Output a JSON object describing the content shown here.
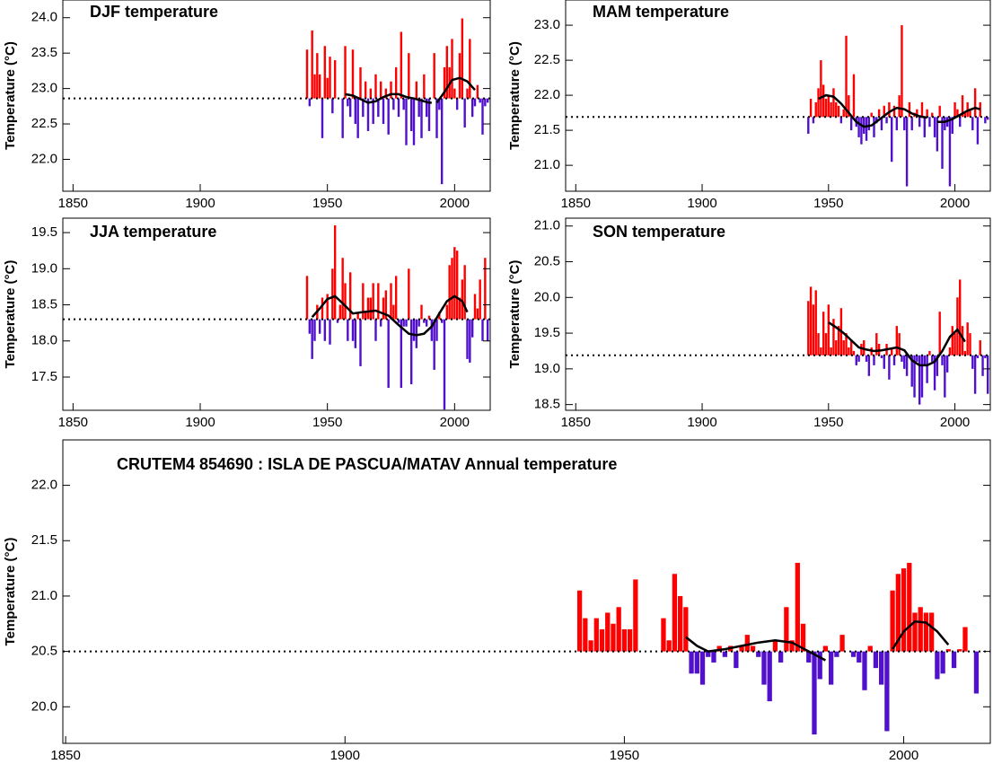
{
  "chart_data": [
    {
      "type": "bar",
      "title": "DJF temperature",
      "y_label": "Temperature (°C)",
      "xlim": [
        1846,
        2014
      ],
      "xticks": [
        1850,
        1900,
        1950,
        2000
      ],
      "ylim": [
        21.55,
        24.25
      ],
      "yticks": [
        {
          "value": 22.0,
          "label": "22.0"
        },
        {
          "value": 22.5,
          "label": "22.5"
        },
        {
          "value": 23.0,
          "label": "23.0"
        },
        {
          "value": 23.5,
          "label": "23.5"
        },
        {
          "value": 24.0,
          "label": "24.0"
        }
      ],
      "baseline": 22.86,
      "color_above": "#ff0000",
      "color_below": "#5010cc",
      "x": [
        1942,
        1943,
        1944,
        1945,
        1946,
        1947,
        1948,
        1949,
        1950,
        1951,
        1952,
        1953,
        1954,
        1955,
        1956,
        1957,
        1958,
        1959,
        1960,
        1961,
        1962,
        1963,
        1964,
        1965,
        1966,
        1967,
        1968,
        1969,
        1970,
        1971,
        1972,
        1973,
        1974,
        1975,
        1976,
        1977,
        1978,
        1979,
        1980,
        1981,
        1982,
        1983,
        1984,
        1985,
        1986,
        1987,
        1988,
        1989,
        1990,
        1991,
        1992,
        1993,
        1994,
        1995,
        1996,
        1997,
        1998,
        1999,
        2000,
        2001,
        2002,
        2003,
        2004,
        2005,
        2006,
        2007,
        2008,
        2009,
        2010,
        2011,
        2012,
        2013
      ],
      "values": [
        23.55,
        22.75,
        23.82,
        23.2,
        23.5,
        23.2,
        22.3,
        23.6,
        23.15,
        23.45,
        22.65,
        23.4,
        null,
        null,
        22.3,
        23.6,
        22.75,
        22.6,
        23.55,
        22.5,
        22.3,
        23.3,
        22.6,
        23.1,
        22.4,
        23.0,
        22.5,
        23.2,
        22.6,
        23.1,
        22.5,
        23.0,
        22.35,
        23.1,
        22.7,
        23.3,
        22.6,
        23.8,
        22.7,
        22.2,
        23.5,
        22.4,
        22.2,
        23.1,
        22.6,
        22.3,
        23.2,
        22.6,
        22.4,
        null,
        23.5,
        22.3,
        22.7,
        21.65,
        23.3,
        23.6,
        23.3,
        23.7,
        23.0,
        22.7,
        23.5,
        23.99,
        22.45,
        23.0,
        23.7,
        22.6,
        22.75,
        23.05,
        22.8,
        22.35,
        22.75,
        22.8
      ],
      "smooth": {
        "color": "#000000",
        "x": [
          1957,
          1960,
          1963,
          1966,
          1969,
          1972,
          1975,
          1978,
          1981,
          1984,
          1987,
          1990,
          1991,
          1992,
          1993,
          1996,
          1999,
          2002,
          2005,
          2008
        ],
        "values": [
          22.92,
          22.9,
          22.85,
          22.8,
          22.82,
          22.88,
          22.92,
          22.92,
          22.88,
          22.86,
          22.83,
          22.8,
          22.8,
          null,
          22.8,
          22.95,
          23.12,
          23.15,
          23.1,
          22.98
        ]
      }
    },
    {
      "type": "bar",
      "title": "MAM temperature",
      "y_label": "Temperature (°C)",
      "xlim": [
        1846,
        2014
      ],
      "xticks": [
        1850,
        1900,
        1950,
        2000
      ],
      "ylim": [
        20.63,
        23.36
      ],
      "yticks": [
        {
          "value": 21.0,
          "label": "21.0"
        },
        {
          "value": 21.5,
          "label": "21.5"
        },
        {
          "value": 22.0,
          "label": "22.0"
        },
        {
          "value": 22.5,
          "label": "22.5"
        },
        {
          "value": 23.0,
          "label": "23.0"
        }
      ],
      "baseline": 21.69,
      "color_above": "#ff0000",
      "color_below": "#5010cc",
      "x": [
        1942,
        1943,
        1944,
        1945,
        1946,
        1947,
        1948,
        1949,
        1950,
        1951,
        1952,
        1953,
        1954,
        1955,
        1956,
        1957,
        1958,
        1959,
        1960,
        1961,
        1962,
        1963,
        1964,
        1965,
        1966,
        1967,
        1968,
        1969,
        1970,
        1971,
        1972,
        1973,
        1974,
        1975,
        1976,
        1977,
        1978,
        1979,
        1980,
        1981,
        1982,
        1983,
        1984,
        1985,
        1986,
        1987,
        1988,
        1989,
        1990,
        1991,
        1992,
        1993,
        1994,
        1995,
        1996,
        1997,
        1998,
        1999,
        2000,
        2001,
        2002,
        2003,
        2004,
        2005,
        2006,
        2007,
        2008,
        2009,
        2010,
        2011,
        2012,
        2013
      ],
      "values": [
        21.45,
        21.95,
        21.6,
        21.9,
        22.1,
        22.5,
        22.15,
        21.95,
        22.0,
        21.9,
        22.1,
        21.9,
        21.85,
        21.6,
        21.8,
        22.85,
        22.0,
        21.5,
        22.3,
        21.55,
        21.4,
        21.3,
        21.45,
        21.35,
        21.5,
        21.75,
        21.4,
        21.6,
        21.8,
        21.5,
        21.85,
        21.6,
        21.9,
        21.05,
        21.85,
        21.5,
        22.0,
        23.0,
        21.5,
        20.7,
        21.9,
        21.5,
        21.75,
        21.8,
        21.55,
        21.9,
        21.4,
        21.8,
        21.55,
        21.75,
        21.4,
        21.2,
        21.85,
        20.95,
        21.5,
        21.55,
        20.7,
        21.45,
        21.9,
        21.8,
        21.55,
        22.0,
        21.75,
        21.9,
        21.8,
        21.5,
        22.1,
        21.3,
        21.9,
        null,
        21.6,
        21.65
      ],
      "smooth": {
        "color": "#000000",
        "x": [
          1946,
          1949,
          1952,
          1955,
          1958,
          1961,
          1964,
          1967,
          1970,
          1974,
          1977,
          1980,
          1983,
          1986,
          1989,
          1991,
          1993,
          1996,
          1999,
          2002,
          2005,
          2008,
          2010
        ],
        "values": [
          21.95,
          22.0,
          21.98,
          21.88,
          21.75,
          21.62,
          21.55,
          21.57,
          21.65,
          21.76,
          21.82,
          21.8,
          21.74,
          21.7,
          21.68,
          null,
          21.62,
          21.62,
          21.66,
          21.72,
          21.78,
          21.82,
          21.8
        ]
      }
    },
    {
      "type": "bar",
      "title": "JJA temperature",
      "y_label": "Temperature (°C)",
      "xlim": [
        1846,
        2014
      ],
      "xticks": [
        1850,
        1900,
        1950,
        2000
      ],
      "ylim": [
        17.04,
        19.7
      ],
      "yticks": [
        {
          "value": 17.5,
          "label": "17.5"
        },
        {
          "value": 18.0,
          "label": "18.0"
        },
        {
          "value": 18.5,
          "label": "18.5"
        },
        {
          "value": 19.0,
          "label": "19.0"
        },
        {
          "value": 19.5,
          "label": "19.5"
        }
      ],
      "baseline": 18.3,
      "color_above": "#ff0000",
      "color_below": "#5010cc",
      "x": [
        1942,
        1943,
        1944,
        1945,
        1946,
        1947,
        1948,
        1949,
        1950,
        1951,
        1952,
        1953,
        1954,
        1955,
        1956,
        1957,
        1958,
        1959,
        1960,
        1961,
        1962,
        1963,
        1964,
        1965,
        1966,
        1967,
        1968,
        1969,
        1970,
        1971,
        1972,
        1973,
        1974,
        1975,
        1976,
        1977,
        1978,
        1979,
        1980,
        1981,
        1982,
        1983,
        1984,
        1985,
        1986,
        1987,
        1988,
        1989,
        1990,
        1991,
        1992,
        1993,
        1994,
        1995,
        1996,
        1997,
        1998,
        1999,
        2000,
        2001,
        2002,
        2003,
        2004,
        2005,
        2006,
        2007,
        2008,
        2009,
        2010,
        2011,
        2012,
        2013
      ],
      "values": [
        18.9,
        18.1,
        17.75,
        18.0,
        18.5,
        18.1,
        18.6,
        18.0,
        18.65,
        17.95,
        19.0,
        19.6,
        18.25,
        18.5,
        19.15,
        18.8,
        18.0,
        18.95,
        18.0,
        17.9,
        18.4,
        17.65,
        18.8,
        18.4,
        18.6,
        18.6,
        18.8,
        18.0,
        18.8,
        18.2,
        18.6,
        18.7,
        17.35,
        18.8,
        18.5,
        18.9,
        18.25,
        17.35,
        18.2,
        18.2,
        19.0,
        17.4,
        18.0,
        17.9,
        18.2,
        18.5,
        18.25,
        18.2,
        18.35,
        18.0,
        17.6,
        18.0,
        18.4,
        18.25,
        17.05,
        18.5,
        19.05,
        19.15,
        19.3,
        19.25,
        18.6,
        18.85,
        19.05,
        17.75,
        17.7,
        18.05,
        18.65,
        18.45,
        18.85,
        18.0,
        19.15,
        18.0
      ],
      "smooth": {
        "color": "#000000",
        "x": [
          1944,
          1947,
          1950,
          1953,
          1956,
          1960,
          1964,
          1969,
          1974,
          1978,
          1982,
          1985,
          1988,
          1991,
          1994,
          1997,
          2000,
          2003,
          2005
        ],
        "values": [
          18.33,
          18.45,
          18.58,
          18.62,
          18.52,
          18.38,
          18.4,
          18.42,
          18.35,
          18.22,
          18.1,
          18.08,
          18.1,
          18.2,
          18.38,
          18.55,
          18.62,
          18.55,
          18.4
        ]
      }
    },
    {
      "type": "bar",
      "title": "SON temperature",
      "y_label": "Temperature (°C)",
      "xlim": [
        1846,
        2014
      ],
      "xticks": [
        1850,
        1900,
        1950,
        2000
      ],
      "ylim": [
        18.42,
        21.11
      ],
      "yticks": [
        {
          "value": 18.5,
          "label": "18.5"
        },
        {
          "value": 19.0,
          "label": "19.0"
        },
        {
          "value": 19.5,
          "label": "19.5"
        },
        {
          "value": 20.0,
          "label": "20.0"
        },
        {
          "value": 20.5,
          "label": "20.5"
        },
        {
          "value": 21.0,
          "label": "21.0"
        }
      ],
      "baseline": 19.19,
      "color_above": "#ff0000",
      "color_below": "#5010cc",
      "x": [
        1942,
        1943,
        1944,
        1945,
        1946,
        1947,
        1948,
        1949,
        1950,
        1951,
        1952,
        1953,
        1954,
        1955,
        1956,
        1957,
        1958,
        1959,
        1960,
        1961,
        1962,
        1963,
        1964,
        1965,
        1966,
        1967,
        1968,
        1969,
        1970,
        1971,
        1972,
        1973,
        1974,
        1975,
        1976,
        1977,
        1978,
        1979,
        1980,
        1981,
        1982,
        1983,
        1984,
        1985,
        1986,
        1987,
        1988,
        1989,
        1990,
        1991,
        1992,
        1993,
        1994,
        1995,
        1996,
        1997,
        1998,
        1999,
        2000,
        2001,
        2002,
        2003,
        2004,
        2005,
        2006,
        2007,
        2008,
        2009,
        2010,
        2011,
        2012,
        2013
      ],
      "values": [
        19.95,
        20.15,
        19.9,
        20.1,
        19.5,
        19.3,
        19.8,
        19.5,
        19.9,
        19.3,
        19.7,
        19.4,
        19.6,
        19.85,
        19.4,
        19.5,
        19.3,
        19.4,
        19.25,
        19.05,
        19.1,
        19.35,
        19.4,
        19.1,
        18.9,
        19.3,
        19.05,
        19.5,
        19.35,
        19.15,
        19.0,
        19.35,
        18.85,
        19.3,
        19.05,
        19.6,
        19.5,
        19.1,
        19.0,
        18.9,
        19.15,
        18.75,
        18.6,
        19.1,
        18.5,
        18.6,
        19.05,
        18.8,
        19.25,
        19.1,
        18.7,
        18.9,
        19.8,
        19.05,
        18.6,
        18.95,
        19.3,
        19.6,
        19.5,
        20.0,
        20.25,
        19.6,
        19.25,
        19.65,
        19.5,
        19.0,
        18.65,
        19.15,
        19.4,
        18.9,
        19.15,
        18.65
      ],
      "smooth": {
        "color": "#000000",
        "x": [
          1950,
          1953,
          1956,
          1959,
          1962,
          1965,
          1968,
          1971,
          1974,
          1977,
          1980,
          1983,
          1986,
          1989,
          1992,
          1995,
          1998,
          2001,
          2004
        ],
        "values": [
          19.65,
          19.58,
          19.5,
          19.4,
          19.3,
          19.27,
          19.25,
          19.26,
          19.28,
          19.3,
          19.26,
          19.12,
          19.05,
          19.05,
          19.1,
          19.25,
          19.45,
          19.55,
          19.38
        ]
      }
    },
    {
      "type": "bar",
      "title": "CRUTEM4 854690 : ISLA DE PASCUA/MATAV Annual temperature",
      "y_label": "Temperature (°C)",
      "xlim": [
        1849.5,
        2015.5
      ],
      "xticks": [
        1850,
        1900,
        1950,
        2000
      ],
      "ylim": [
        19.67,
        22.41
      ],
      "yticks": [
        {
          "value": 20.0,
          "label": "20.0"
        },
        {
          "value": 20.5,
          "label": "20.5"
        },
        {
          "value": 21.0,
          "label": "21.0"
        },
        {
          "value": 21.5,
          "label": "21.5"
        },
        {
          "value": 22.0,
          "label": "22.0"
        }
      ],
      "baseline": 20.5,
      "color_above": "#ff0000",
      "color_below": "#5010cc",
      "x": [
        1942,
        1943,
        1944,
        1945,
        1946,
        1947,
        1948,
        1949,
        1950,
        1951,
        1952,
        1953,
        1954,
        1955,
        1956,
        1957,
        1958,
        1959,
        1960,
        1961,
        1962,
        1963,
        1964,
        1965,
        1966,
        1967,
        1968,
        1969,
        1970,
        1971,
        1972,
        1973,
        1974,
        1975,
        1976,
        1977,
        1978,
        1979,
        1980,
        1981,
        1982,
        1983,
        1984,
        1985,
        1986,
        1987,
        1988,
        1989,
        1990,
        1991,
        1992,
        1993,
        1994,
        1995,
        1996,
        1997,
        1998,
        1999,
        2000,
        2001,
        2002,
        2003,
        2004,
        2005,
        2006,
        2007,
        2008,
        2009,
        2010,
        2011,
        2012,
        2013
      ],
      "values": [
        21.05,
        20.8,
        20.6,
        20.8,
        20.7,
        20.85,
        20.75,
        20.9,
        20.7,
        20.7,
        21.15,
        null,
        null,
        null,
        null,
        20.8,
        20.6,
        21.2,
        21.0,
        20.9,
        20.3,
        20.3,
        20.2,
        20.45,
        20.4,
        20.55,
        20.45,
        20.55,
        20.35,
        20.55,
        20.65,
        20.55,
        20.45,
        20.2,
        20.05,
        20.6,
        20.4,
        20.9,
        20.6,
        21.3,
        20.75,
        20.4,
        19.75,
        20.25,
        20.55,
        20.2,
        20.45,
        20.65,
        null,
        20.45,
        20.4,
        20.15,
        20.55,
        20.35,
        20.2,
        19.78,
        21.05,
        21.2,
        21.25,
        21.3,
        20.85,
        20.9,
        20.85,
        20.85,
        20.25,
        20.3,
        20.52,
        20.35,
        20.52,
        20.72,
        20.5,
        20.12
      ],
      "smooth": {
        "color": "#000000",
        "x": [
          1961,
          1963,
          1965,
          1968,
          1971,
          1974,
          1977,
          1980,
          1983,
          1986,
          1992,
          1998,
          2000,
          2002,
          2004,
          2006,
          2008
        ],
        "values": [
          20.63,
          20.55,
          20.5,
          20.52,
          20.55,
          20.58,
          20.6,
          20.58,
          20.5,
          20.42,
          null,
          20.52,
          20.68,
          20.77,
          20.76,
          20.68,
          20.56
        ]
      }
    }
  ]
}
